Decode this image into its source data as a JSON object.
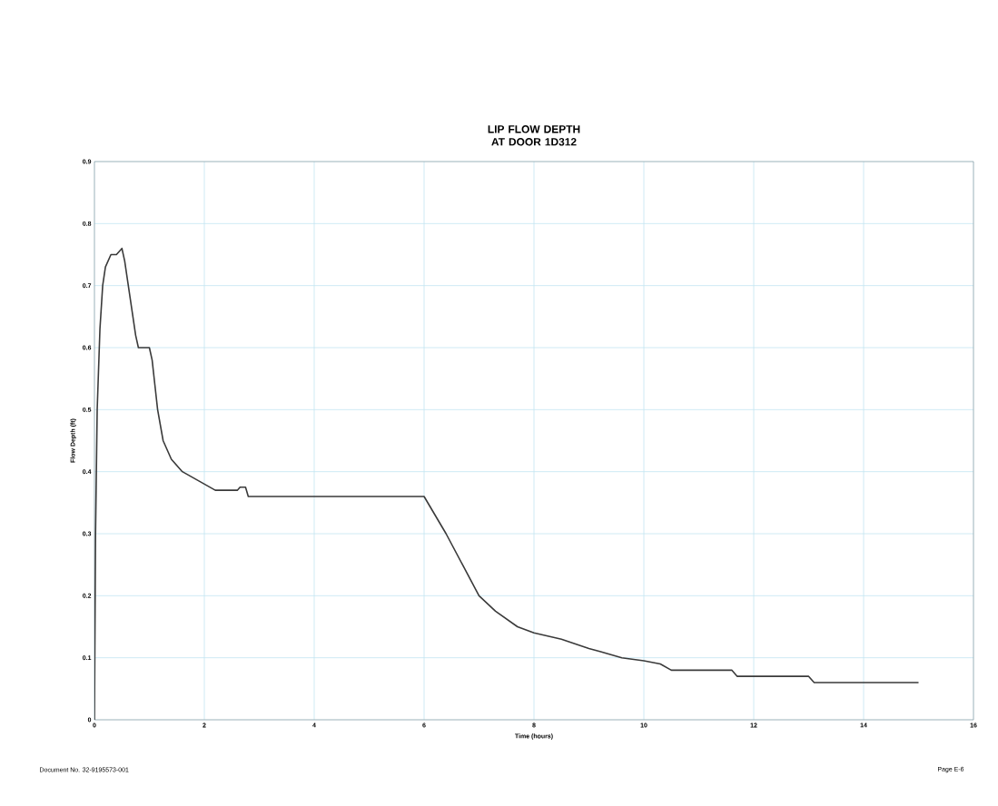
{
  "chart_data": {
    "type": "line",
    "title": "LIP FLOW DEPTH AT DOOR 1D312",
    "xlabel": "Time (hours)",
    "ylabel": "Flow Depth (ft)",
    "x": [
      0,
      0.02,
      0.05,
      0.1,
      0.15,
      0.2,
      0.3,
      0.4,
      0.45,
      0.5,
      0.55,
      0.65,
      0.75,
      0.8,
      1.0,
      1.05,
      1.1,
      1.15,
      1.25,
      1.4,
      1.6,
      1.9,
      2.2,
      2.6,
      2.65,
      2.75,
      2.8,
      4.0,
      5.0,
      6.0,
      6.2,
      6.4,
      6.7,
      7.0,
      7.3,
      7.7,
      8.0,
      8.5,
      9.0,
      9.2,
      9.6,
      10.0,
      10.3,
      10.5,
      11.0,
      11.6,
      11.7,
      12.5,
      13.0,
      13.1,
      14.0,
      15.0
    ],
    "series": [
      {
        "color": "#3a3a3a",
        "values": [
          0,
          0.3,
          0.5,
          0.63,
          0.7,
          0.73,
          0.75,
          0.75,
          0.755,
          0.76,
          0.74,
          0.68,
          0.62,
          0.6,
          0.6,
          0.58,
          0.54,
          0.5,
          0.45,
          0.42,
          0.4,
          0.385,
          0.37,
          0.37,
          0.375,
          0.375,
          0.36,
          0.36,
          0.36,
          0.36,
          0.33,
          0.3,
          0.25,
          0.2,
          0.175,
          0.15,
          0.14,
          0.13,
          0.115,
          0.11,
          0.1,
          0.095,
          0.09,
          0.08,
          0.08,
          0.08,
          0.07,
          0.07,
          0.07,
          0.06,
          0.06,
          0.06
        ]
      }
    ],
    "xlim": [
      0,
      16
    ],
    "xticks": [
      0,
      2,
      4,
      6,
      8,
      10,
      12,
      14,
      16
    ],
    "ylim": [
      0,
      0.9
    ],
    "yticks": [
      0,
      0.1,
      0.2,
      0.3,
      0.4,
      0.5,
      0.6,
      0.7,
      0.8,
      0.9
    ],
    "grid": true,
    "marker": "none",
    "line_style": "solid",
    "annotations": [
      "Document No. 32-9195573-001",
      "Page E-6"
    ]
  }
}
